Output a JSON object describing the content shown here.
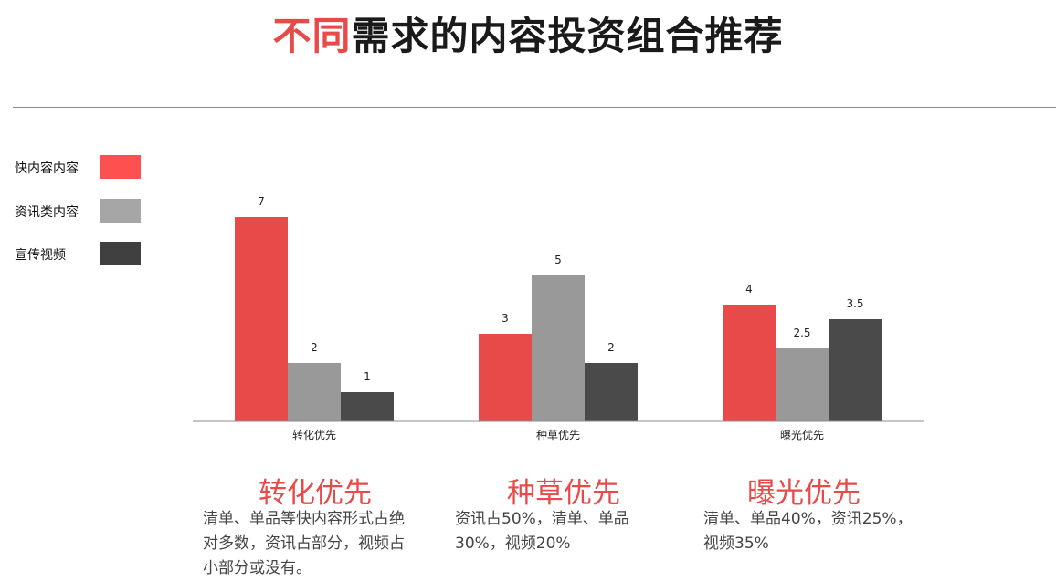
{
  "title": {
    "highlight": "不同",
    "rest": "需求的内容投资组合推荐"
  },
  "colors": {
    "accent": "#e84a4a",
    "series": [
      "#e84a4a",
      "#999999",
      "#4a4a4a"
    ],
    "legend_swatch": [
      "#ff5050",
      "#a6a6a6",
      "#404040"
    ]
  },
  "legend": [
    {
      "label": "快内容内容"
    },
    {
      "label": "资讯类内容"
    },
    {
      "label": "宣传视频"
    }
  ],
  "chart_data": {
    "type": "bar",
    "categories": [
      "转化优先",
      "种草优先",
      "曝光优先"
    ],
    "series": [
      {
        "name": "快内容内容",
        "values": [
          7,
          3,
          4
        ]
      },
      {
        "name": "资讯类内容",
        "values": [
          2,
          5,
          2.5
        ]
      },
      {
        "name": "宣传视频",
        "values": [
          1,
          2,
          3.5
        ]
      }
    ],
    "data_labels": [
      [
        "7",
        "3",
        "4"
      ],
      [
        "2",
        "5",
        "2.5"
      ],
      [
        "1",
        "2",
        "3.5"
      ]
    ],
    "ylim": [
      0,
      7
    ],
    "grid": false,
    "legend_position": "left"
  },
  "sections": [
    {
      "title": "转化优先",
      "desc": [
        "清单、单品等快内容形式占绝",
        "对多数，资讯占部分，视频占",
        "小部分或没有。"
      ]
    },
    {
      "title": "种草优先",
      "desc": [
        "资讯占50%，清单、单品",
        "30%，视频20%"
      ]
    },
    {
      "title": "曝光优先",
      "desc": [
        "清单、单品40%，资讯25%，",
        "视频35%"
      ]
    }
  ]
}
